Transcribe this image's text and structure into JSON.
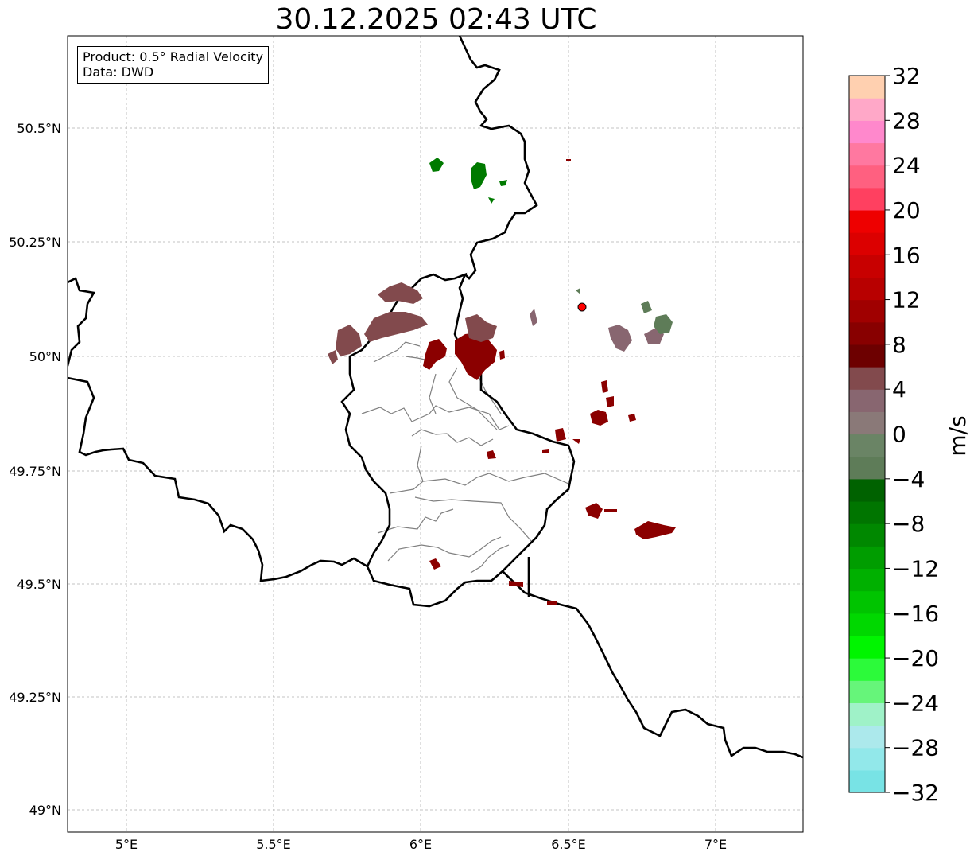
{
  "title": "30.12.2025 02:43 UTC",
  "info": {
    "product": "Product: 0.5° Radial Velocity",
    "data_source": "Data: DWD"
  },
  "axes": {
    "lon_ticks": [
      "5°E",
      "5.5°E",
      "6°E",
      "6.5°E",
      "7°E"
    ],
    "lat_ticks": [
      "50.5°N",
      "50.25°N",
      "50°N",
      "49.75°N",
      "49.5°N",
      "49.25°N",
      "49°N"
    ],
    "lon_range": [
      4.8,
      7.3
    ],
    "lat_range": [
      48.95,
      50.7
    ]
  },
  "colorbar": {
    "label": "m/s",
    "min": -32,
    "max": 32,
    "step": 4,
    "tick_labels": [
      "32",
      "28",
      "24",
      "20",
      "16",
      "12",
      "8",
      "4",
      "0",
      "−4",
      "−8",
      "−12",
      "−16",
      "−20",
      "−24",
      "−28",
      "−32"
    ],
    "colors_bottom_to_top": [
      "#78e3e5",
      "#92e8ea",
      "#ace9ec",
      "#9ff2c8",
      "#66f57a",
      "#2cfa3a",
      "#00f500",
      "#00d800",
      "#00c400",
      "#00b000",
      "#009d00",
      "#008800",
      "#007500",
      "#006200",
      "#5e7c58",
      "#6a8465",
      "#8a7978",
      "#886670",
      "#824a4d",
      "#6d0000",
      "#880000",
      "#a00000",
      "#b80000",
      "#c80000",
      "#dc0000",
      "#ee0000",
      "#ff4060",
      "#ff6080",
      "#ff78a0",
      "#ff88cc",
      "#ffa8c8",
      "#ffd0b0"
    ]
  },
  "radar_site": {
    "lon": 6.547,
    "lat": 50.11,
    "color": "#ff0000"
  }
}
